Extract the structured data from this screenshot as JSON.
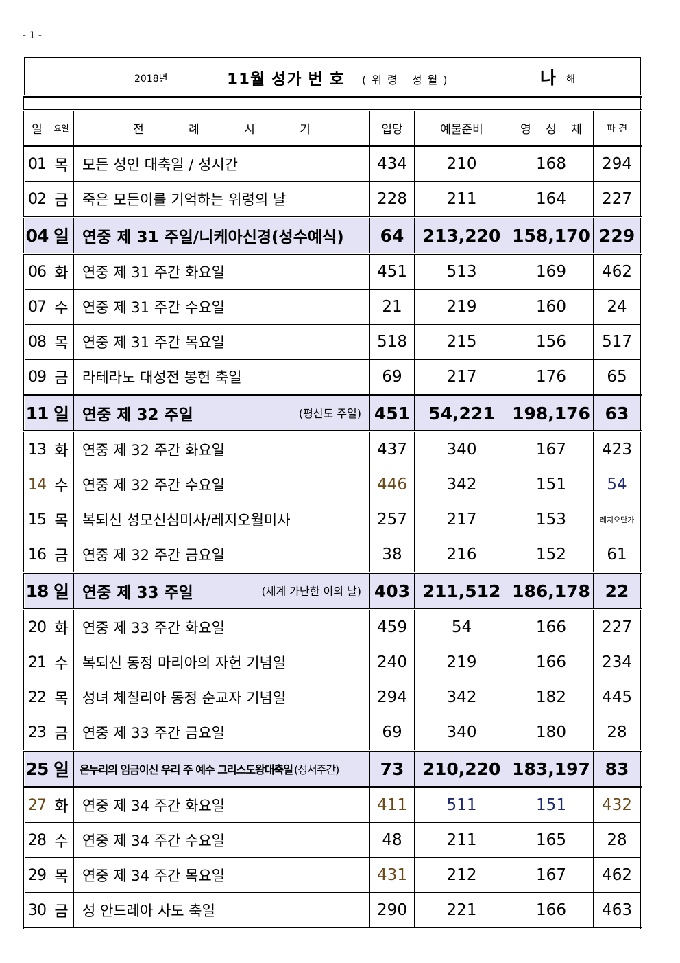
{
  "page_number": "- 1 -",
  "title": {
    "year": "2018년",
    "main": "11월 성가  번 호",
    "sub": "(위령 성월)",
    "cycle": "나",
    "cycle_suffix": "해"
  },
  "headers": [
    "일",
    "요일",
    "전  례  시  기",
    "입당",
    "예물준비",
    "영 성 체",
    "파 견"
  ],
  "rows": [
    {
      "day": "01",
      "wd": "목",
      "title": "모든 성인 대축일 / 성시간",
      "note": "",
      "entrance": "434",
      "offertory": "210",
      "communion": "168",
      "recessional": "294",
      "sunday": false
    },
    {
      "day": "02",
      "wd": "금",
      "title": "죽은 모든이를 기억하는 위령의 날",
      "note": "",
      "entrance": "228",
      "offertory": "211",
      "communion": "164",
      "recessional": "227",
      "sunday": false
    },
    {
      "day": "04",
      "wd": "일",
      "title": "연중 제 31 주일/니케아신경(성수예식)",
      "note": "",
      "entrance": "64",
      "offertory": "213,220",
      "communion": "158,170",
      "recessional": "229",
      "sunday": true
    },
    {
      "day": "06",
      "wd": "화",
      "title": "연중  제 31 주간  화요일",
      "note": "",
      "entrance": "451",
      "offertory": "513",
      "communion": "169",
      "recessional": "462",
      "sunday": false
    },
    {
      "day": "07",
      "wd": "수",
      "title": "연중  제 31 주간  수요일",
      "note": "",
      "entrance": "21",
      "offertory": "219",
      "communion": "160",
      "recessional": "24",
      "sunday": false
    },
    {
      "day": "08",
      "wd": "목",
      "title": "연중  제 31 주간  목요일",
      "note": "",
      "entrance": "518",
      "offertory": "215",
      "communion": "156",
      "recessional": "517",
      "sunday": false
    },
    {
      "day": "09",
      "wd": "금",
      "title": "라테라노 대성전 봉헌 축일",
      "note": "",
      "entrance": "69",
      "offertory": "217",
      "communion": "176",
      "recessional": "65",
      "sunday": false
    },
    {
      "day": "11",
      "wd": "일",
      "title": "연중 제 32 주일",
      "note": "(평신도 주일)",
      "entrance": "451",
      "offertory": "54,221",
      "communion": "198,176",
      "recessional": "63",
      "sunday": true
    },
    {
      "day": "13",
      "wd": "화",
      "title": "연중  제 32 주간  화요일",
      "note": "",
      "entrance": "437",
      "offertory": "340",
      "communion": "167",
      "recessional": "423",
      "sunday": false
    },
    {
      "day": "14",
      "wd": "수",
      "title": "연중  제 32 주간  수요일",
      "note": "",
      "entrance": "446",
      "offertory": "342",
      "communion": "151",
      "recessional": "54",
      "sunday": false
    },
    {
      "day": "15",
      "wd": "목",
      "title": "복되신 성모신심미사/레지오월미사",
      "note": "",
      "entrance": "257",
      "offertory": "217",
      "communion": "153",
      "recessional": "레지오단가",
      "sunday": false
    },
    {
      "day": "16",
      "wd": "금",
      "title": "연중  제 32 주간  금요일",
      "note": "",
      "entrance": "38",
      "offertory": "216",
      "communion": "152",
      "recessional": "61",
      "sunday": false
    },
    {
      "day": "18",
      "wd": "일",
      "title": "연중 제 33 주일",
      "note": "(세계 가난한 이의 날)",
      "entrance": "403",
      "offertory": "211,512",
      "communion": "186,178",
      "recessional": "22",
      "sunday": true
    },
    {
      "day": "20",
      "wd": "화",
      "title": "연중  제 33 주간  화요일",
      "note": "",
      "entrance": "459",
      "offertory": "54",
      "communion": "166",
      "recessional": "227",
      "sunday": false
    },
    {
      "day": "21",
      "wd": "수",
      "title": "복되신 동정 마리아의 자헌 기념일",
      "note": "",
      "entrance": "240",
      "offertory": "219",
      "communion": "166",
      "recessional": "234",
      "sunday": false
    },
    {
      "day": "22",
      "wd": "목",
      "title": "성녀 체칠리아 동정 순교자 기념일",
      "note": "",
      "entrance": "294",
      "offertory": "342",
      "communion": "182",
      "recessional": "445",
      "sunday": false
    },
    {
      "day": "23",
      "wd": "금",
      "title": "연중  제 33 주간  금요일",
      "note": "",
      "entrance": "69",
      "offertory": "340",
      "communion": "180",
      "recessional": "28",
      "sunday": false
    },
    {
      "day": "25",
      "wd": "일",
      "title": "온누리의 임금이신 우리 주 예수 그리스도왕대축일",
      "note": "(성서주간)",
      "entrance": "73",
      "offertory": "210,220",
      "communion": "183,197",
      "recessional": "83",
      "sunday": true
    },
    {
      "day": "27",
      "wd": "화",
      "title": "연중  제 34 주간  화요일",
      "note": "",
      "entrance": "411",
      "offertory": "511",
      "communion": "151",
      "recessional": "432",
      "sunday": false
    },
    {
      "day": "28",
      "wd": "수",
      "title": "연중  제 34 주간  수요일",
      "note": "",
      "entrance": "48",
      "offertory": "211",
      "communion": "165",
      "recessional": "28",
      "sunday": false
    },
    {
      "day": "29",
      "wd": "목",
      "title": "연중  제 34 주간  목요일",
      "note": "",
      "entrance": "431",
      "offertory": "212",
      "communion": "167",
      "recessional": "462",
      "sunday": false
    },
    {
      "day": "30",
      "wd": "금",
      "title": "성 안드레아 사도 축일",
      "note": "",
      "entrance": "290",
      "offertory": "221",
      "communion": "166",
      "recessional": "463",
      "sunday": false
    }
  ],
  "colors": {
    "sunday_bg": "#e3e3f5",
    "brown": "#6b4a1a",
    "blue": "#1e2a6e"
  }
}
